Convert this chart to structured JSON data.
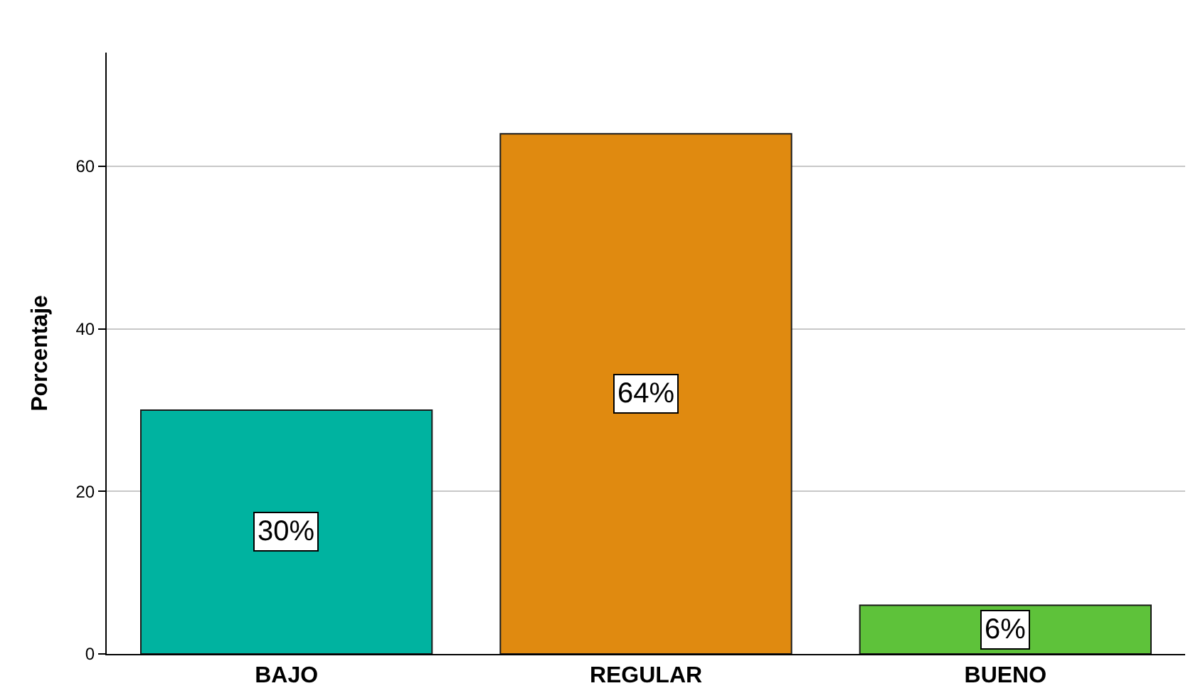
{
  "chart_data": {
    "type": "bar",
    "ylabel": "Porcentaje",
    "categories": [
      "BAJO",
      "REGULAR",
      "BUENO"
    ],
    "values": [
      30,
      64,
      6
    ],
    "colors": [
      "#00b3a0",
      "#e08a10",
      "#5ec23a"
    ],
    "value_labels": [
      "30%",
      "64%",
      "6%"
    ],
    "ylim": [
      0,
      74
    ],
    "yticks": [
      0,
      20,
      40,
      60
    ],
    "grid": "y"
  }
}
